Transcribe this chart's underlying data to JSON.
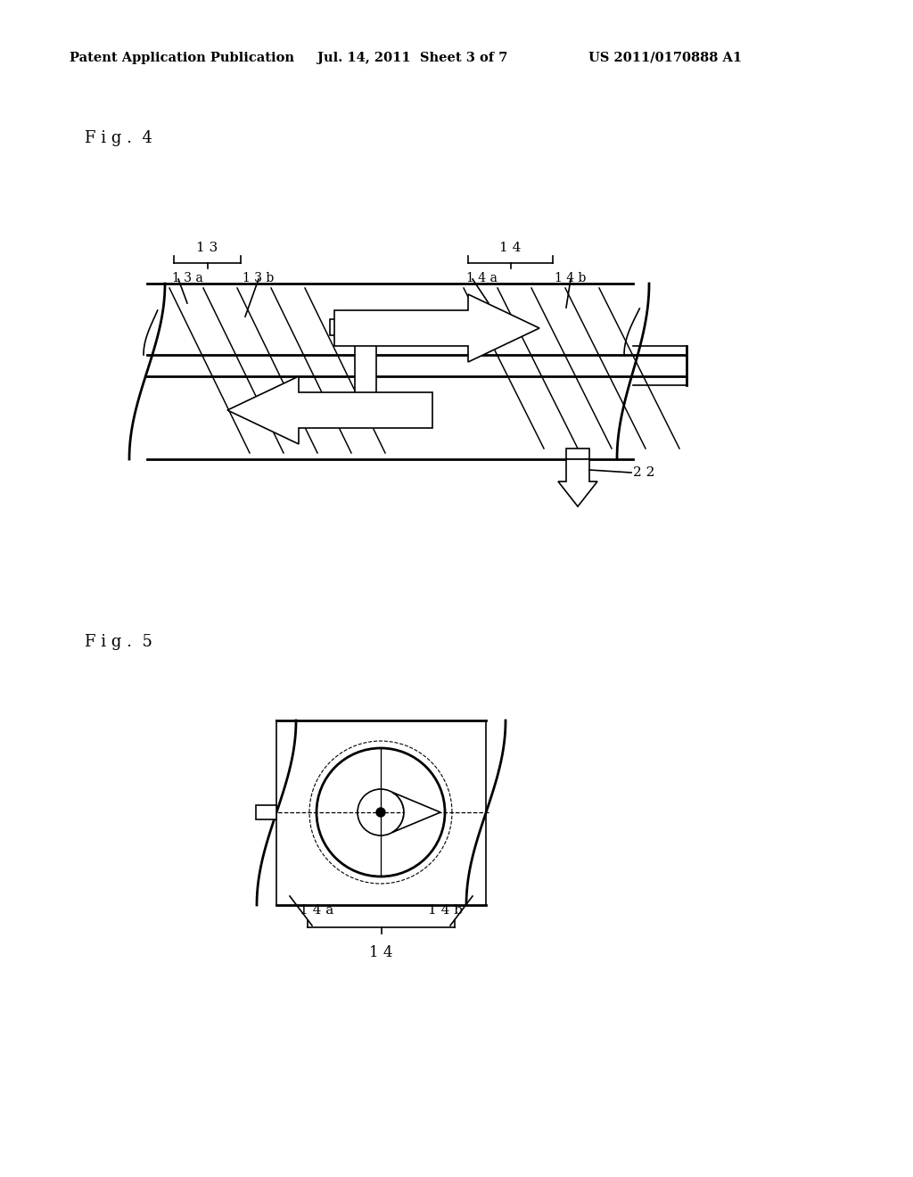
{
  "background_color": "#ffffff",
  "header_left": "Patent Application Publication",
  "header_mid": "Jul. 14, 2011  Sheet 3 of 7",
  "header_right": "US 2011/0170888 A1",
  "fig4_label": "F i g .  4",
  "fig5_label": "F i g .  5",
  "line_color": "#000000",
  "lw": 1.2,
  "lw_thick": 2.0
}
